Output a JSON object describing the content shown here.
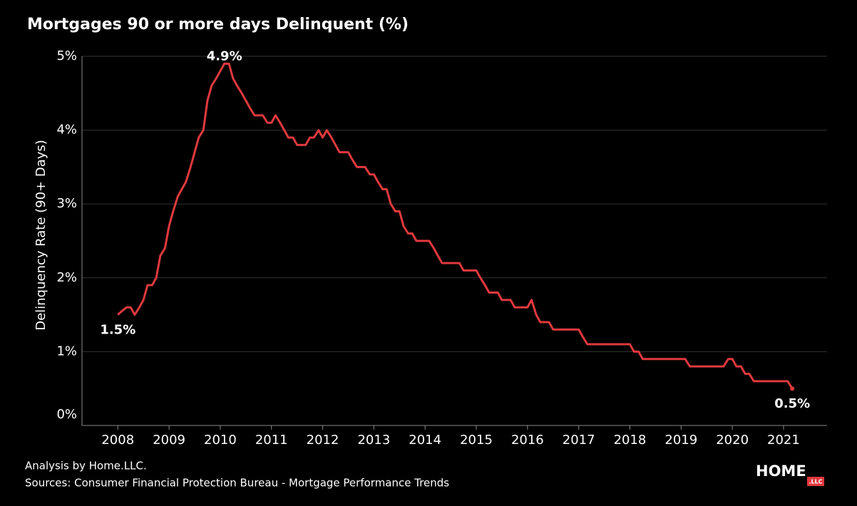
{
  "chart_data": {
    "type": "line",
    "title": "Mortgages 90 or more days Delinquent (%)",
    "y_label": "Delinquency Rate (90+ Days)",
    "x": [
      2008,
      2008.08,
      2008.17,
      2008.25,
      2008.33,
      2008.42,
      2008.5,
      2008.58,
      2008.67,
      2008.75,
      2008.83,
      2008.92,
      2009,
      2009.08,
      2009.17,
      2009.25,
      2009.33,
      2009.42,
      2009.5,
      2009.58,
      2009.67,
      2009.75,
      2009.83,
      2009.92,
      2010,
      2010.08,
      2010.17,
      2010.25,
      2010.33,
      2010.42,
      2010.5,
      2010.58,
      2010.67,
      2010.75,
      2010.83,
      2010.92,
      2011,
      2011.08,
      2011.17,
      2011.25,
      2011.33,
      2011.42,
      2011.5,
      2011.58,
      2011.67,
      2011.75,
      2011.83,
      2011.92,
      2012,
      2012.08,
      2012.17,
      2012.25,
      2012.33,
      2012.42,
      2012.5,
      2012.58,
      2012.67,
      2012.75,
      2012.83,
      2012.92,
      2013,
      2013.08,
      2013.17,
      2013.25,
      2013.33,
      2013.42,
      2013.5,
      2013.58,
      2013.67,
      2013.75,
      2013.83,
      2013.92,
      2014,
      2014.08,
      2014.17,
      2014.25,
      2014.33,
      2014.42,
      2014.5,
      2014.58,
      2014.67,
      2014.75,
      2014.83,
      2014.92,
      2015,
      2015.08,
      2015.17,
      2015.25,
      2015.33,
      2015.42,
      2015.5,
      2015.58,
      2015.67,
      2015.75,
      2015.83,
      2015.92,
      2016,
      2016.08,
      2016.17,
      2016.25,
      2016.33,
      2016.42,
      2016.5,
      2016.58,
      2016.67,
      2016.75,
      2016.83,
      2016.92,
      2017,
      2017.08,
      2017.17,
      2017.25,
      2017.33,
      2017.42,
      2017.5,
      2017.58,
      2017.67,
      2017.75,
      2017.83,
      2017.92,
      2018,
      2018.08,
      2018.17,
      2018.25,
      2018.33,
      2018.42,
      2018.5,
      2018.58,
      2018.67,
      2018.75,
      2018.83,
      2018.92,
      2019,
      2019.08,
      2019.17,
      2019.25,
      2019.33,
      2019.42,
      2019.5,
      2019.58,
      2019.67,
      2019.75,
      2019.83,
      2019.92,
      2020,
      2020.08,
      2020.17,
      2020.25,
      2020.33,
      2020.42,
      2020.5,
      2020.58,
      2020.67,
      2020.75,
      2020.83,
      2020.92,
      2021,
      2021.08,
      2021.17
    ],
    "series": [
      {
        "name": "Delinquency Rate",
        "color": "#e0393e",
        "values": [
          1.5,
          1.55,
          1.6,
          1.6,
          1.5,
          1.6,
          1.7,
          1.9,
          1.9,
          2.0,
          2.3,
          2.4,
          2.7,
          2.9,
          3.1,
          3.2,
          3.3,
          3.5,
          3.7,
          3.9,
          4.0,
          4.4,
          4.6,
          4.7,
          4.8,
          4.9,
          4.9,
          4.7,
          4.6,
          4.5,
          4.4,
          4.3,
          4.2,
          4.2,
          4.2,
          4.1,
          4.1,
          4.2,
          4.1,
          4.0,
          3.9,
          3.9,
          3.8,
          3.8,
          3.8,
          3.9,
          3.9,
          4.0,
          3.9,
          4.0,
          3.9,
          3.8,
          3.7,
          3.7,
          3.7,
          3.6,
          3.5,
          3.5,
          3.5,
          3.4,
          3.4,
          3.3,
          3.2,
          3.2,
          3.0,
          2.9,
          2.9,
          2.7,
          2.6,
          2.6,
          2.5,
          2.5,
          2.5,
          2.5,
          2.4,
          2.3,
          2.2,
          2.2,
          2.2,
          2.2,
          2.2,
          2.1,
          2.1,
          2.1,
          2.1,
          2.0,
          1.9,
          1.8,
          1.8,
          1.8,
          1.7,
          1.7,
          1.7,
          1.6,
          1.6,
          1.6,
          1.6,
          1.7,
          1.5,
          1.4,
          1.4,
          1.4,
          1.3,
          1.3,
          1.3,
          1.3,
          1.3,
          1.3,
          1.3,
          1.2,
          1.1,
          1.1,
          1.1,
          1.1,
          1.1,
          1.1,
          1.1,
          1.1,
          1.1,
          1.1,
          1.1,
          1.0,
          1.0,
          0.9,
          0.9,
          0.9,
          0.9,
          0.9,
          0.9,
          0.9,
          0.9,
          0.9,
          0.9,
          0.9,
          0.8,
          0.8,
          0.8,
          0.8,
          0.8,
          0.8,
          0.8,
          0.8,
          0.8,
          0.9,
          0.9,
          0.8,
          0.8,
          0.7,
          0.7,
          0.6,
          0.6,
          0.6,
          0.6,
          0.6,
          0.6,
          0.6,
          0.6,
          0.6,
          0.5
        ]
      }
    ],
    "annotations": [
      {
        "label": "1.5%",
        "x": 2008,
        "y": 1.5
      },
      {
        "label": "4.9%",
        "x": 2010.08,
        "y": 4.9
      },
      {
        "label": "0.5%",
        "x": 2021.17,
        "y": 0.5
      }
    ],
    "xlim": [
      2007.3,
      2021.85
    ],
    "xticks": [
      2008,
      2009,
      2010,
      2011,
      2012,
      2013,
      2014,
      2015,
      2016,
      2017,
      2018,
      2019,
      2020,
      2021
    ],
    "ylim": [
      0,
      5
    ],
    "yticks": [
      {
        "value": 0,
        "label": "0%"
      },
      {
        "value": 1,
        "label": "1%"
      },
      {
        "value": 2,
        "label": "2%"
      },
      {
        "value": 3,
        "label": "3%"
      },
      {
        "value": 4,
        "label": "4%"
      },
      {
        "value": 5,
        "label": "5%"
      }
    ],
    "grid": true
  },
  "footer": {
    "analysis": "Analysis by Home.LLC.",
    "sources": "Sources: Consumer Financial Protection Bureau - Mortgage Performance Trends"
  },
  "logo": {
    "name": "HOME",
    "suffix": ".LLC"
  }
}
